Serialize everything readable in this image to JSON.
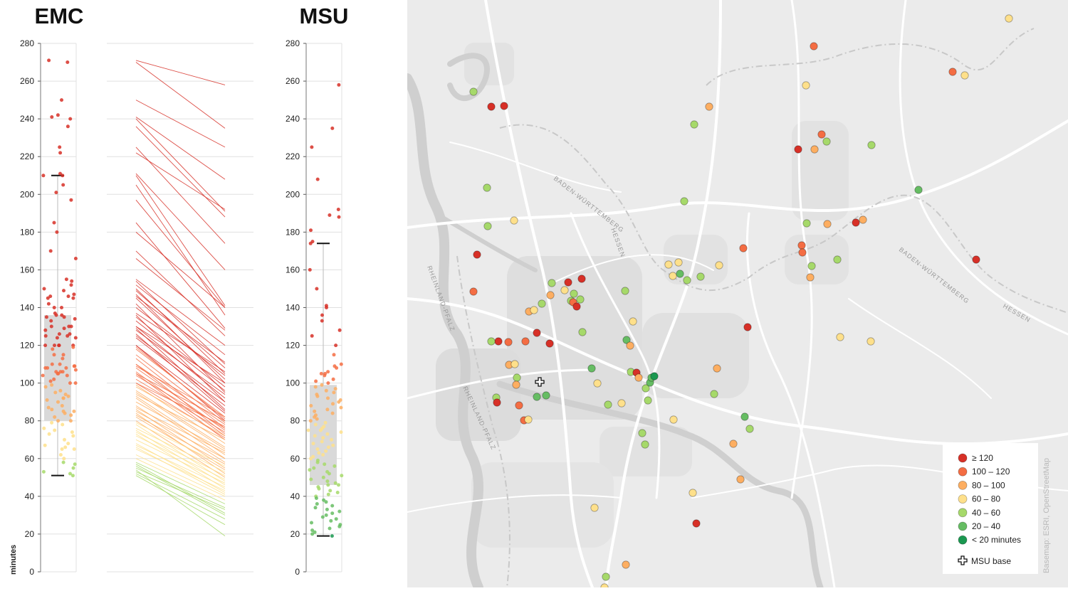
{
  "colors": {
    "ge120": "#d73027",
    "c100_120": "#f46d43",
    "c80_100": "#fdae61",
    "c60_80": "#fee08b",
    "c40_60": "#a6d96a",
    "c20_40": "#66bd63",
    "lt20": "#1a9850",
    "box": "#d9d9d9",
    "grid": "#e0e0e0"
  },
  "chart_data": [
    {
      "type": "box",
      "title": "EMC",
      "ylabel": "minutes",
      "ylim": [
        0,
        280
      ],
      "yticks": [
        0,
        20,
        40,
        60,
        80,
        100,
        120,
        140,
        160,
        180,
        200,
        220,
        240,
        260,
        280
      ],
      "box": {
        "q1": 80,
        "median": 105,
        "q3": 136,
        "whisker_low": 51,
        "whisker_high": 210
      },
      "points": [
        271,
        270,
        250,
        242,
        241,
        240,
        236,
        225,
        222,
        211,
        210,
        210,
        205,
        201,
        197,
        185,
        180,
        170,
        166,
        155,
        154,
        152,
        150,
        149,
        147,
        146,
        146,
        145,
        145,
        142,
        140,
        140,
        137,
        136,
        136,
        135,
        135,
        134,
        133,
        130,
        130,
        130,
        129,
        128,
        126,
        126,
        125,
        125,
        124,
        124,
        120,
        120,
        120,
        120,
        120,
        119,
        118,
        115,
        115,
        113,
        110,
        110,
        109,
        109,
        108,
        108,
        108,
        107,
        106,
        106,
        106,
        105,
        105,
        104,
        104,
        102,
        101,
        100,
        100,
        99,
        98,
        96,
        95,
        94,
        93,
        92,
        92,
        91,
        90,
        88,
        87,
        86,
        85,
        85,
        84,
        83,
        82,
        80,
        80,
        79,
        78,
        76,
        75,
        74,
        73,
        72,
        70,
        68,
        67,
        66,
        65,
        65,
        62,
        60,
        58,
        57,
        55,
        53,
        52,
        51
      ]
    },
    {
      "type": "slope",
      "ylim": [
        0,
        280
      ],
      "pairs": [
        [
          271,
          258
        ],
        [
          270,
          235
        ],
        [
          250,
          225
        ],
        [
          241,
          208
        ],
        [
          240,
          191
        ],
        [
          236,
          188
        ],
        [
          225,
          174
        ],
        [
          222,
          192
        ],
        [
          211,
          160
        ],
        [
          210,
          141
        ],
        [
          205,
          136
        ],
        [
          197,
          140
        ],
        [
          185,
          129
        ],
        [
          180,
          140
        ],
        [
          170,
          125
        ],
        [
          166,
          128
        ],
        [
          155,
          120
        ],
        [
          154,
          110
        ],
        [
          152,
          115
        ],
        [
          150,
          105
        ],
        [
          149,
          108
        ],
        [
          147,
          100
        ],
        [
          146,
          111
        ],
        [
          145,
          102
        ],
        [
          142,
          95
        ],
        [
          140,
          104
        ],
        [
          137,
          106
        ],
        [
          136,
          90
        ],
        [
          135,
          98
        ],
        [
          133,
          96
        ],
        [
          130,
          92
        ],
        [
          130,
          100
        ],
        [
          129,
          86
        ],
        [
          128,
          94
        ],
        [
          126,
          85
        ],
        [
          125,
          90
        ],
        [
          124,
          88
        ],
        [
          120,
          84
        ],
        [
          120,
          80
        ],
        [
          119,
          81
        ],
        [
          118,
          82
        ],
        [
          115,
          79
        ],
        [
          113,
          76
        ],
        [
          110,
          78
        ],
        [
          110,
          73
        ],
        [
          109,
          82
        ],
        [
          108,
          75
        ],
        [
          106,
          72
        ],
        [
          105,
          80
        ],
        [
          105,
          70
        ],
        [
          104,
          76
        ],
        [
          102,
          74
        ],
        [
          100,
          77
        ],
        [
          100,
          71
        ],
        [
          99,
          68
        ],
        [
          98,
          72
        ],
        [
          96,
          66
        ],
        [
          95,
          65
        ],
        [
          94,
          70
        ],
        [
          93,
          62
        ],
        [
          92,
          60
        ],
        [
          90,
          64
        ],
        [
          88,
          58
        ],
        [
          87,
          63
        ],
        [
          86,
          55
        ],
        [
          85,
          60
        ],
        [
          84,
          52
        ],
        [
          83,
          57
        ],
        [
          82,
          54
        ],
        [
          80,
          50
        ],
        [
          79,
          56
        ],
        [
          78,
          48
        ],
        [
          76,
          53
        ],
        [
          75,
          46
        ],
        [
          74,
          51
        ],
        [
          73,
          44
        ],
        [
          72,
          49
        ],
        [
          70,
          47
        ],
        [
          68,
          42
        ],
        [
          67,
          45
        ],
        [
          66,
          41
        ],
        [
          65,
          43
        ],
        [
          62,
          40
        ],
        [
          60,
          38
        ],
        [
          58,
          36
        ],
        [
          57,
          31
        ],
        [
          55,
          34
        ],
        [
          53,
          33
        ],
        [
          52,
          28
        ],
        [
          51,
          25
        ],
        [
          54,
          19
        ],
        [
          56,
          30
        ]
      ]
    },
    {
      "type": "box",
      "title": "MSU",
      "ylabel": "",
      "ylim": [
        0,
        280
      ],
      "yticks": [
        0,
        20,
        40,
        60,
        80,
        100,
        120,
        140,
        160,
        180,
        200,
        220,
        240,
        260,
        280
      ],
      "box": {
        "q1": 46,
        "median": 75,
        "q3": 99,
        "whisker_low": 19,
        "whisker_high": 174
      },
      "points": [
        258,
        235,
        225,
        208,
        192,
        189,
        188,
        181,
        175,
        174,
        160,
        150,
        141,
        140,
        136,
        133,
        128,
        125,
        120,
        115,
        110,
        109,
        108,
        106,
        105,
        105,
        104,
        102,
        101,
        100,
        99,
        98,
        97,
        96,
        95,
        94,
        93,
        92,
        91,
        90,
        89,
        88,
        87,
        86,
        85,
        84,
        83,
        82,
        81,
        80,
        79,
        78,
        77,
        76,
        75,
        75,
        74,
        73,
        72,
        71,
        70,
        69,
        68,
        67,
        66,
        65,
        64,
        63,
        62,
        61,
        60,
        59,
        58,
        57,
        56,
        55,
        54,
        53,
        52,
        51,
        50,
        49,
        48,
        47,
        46,
        46,
        45,
        44,
        43,
        42,
        41,
        40,
        39,
        38,
        37,
        36,
        35,
        34,
        33,
        32,
        31,
        30,
        29,
        28,
        27,
        26,
        25,
        24,
        23,
        22,
        21,
        20,
        19
      ]
    }
  ],
  "map": {
    "region_labels": [
      "BADEN-WÜRTTEMBERG",
      "HESSEN",
      "RHEINLAND-PFALZ",
      "RHEINLAND-PFALZ",
      "BADEN-WÜRTTEMBERG",
      "HESSEN"
    ],
    "base_icon": "msu-base-plus-icon",
    "incidents": [
      {
        "minutes": 130,
        "cls": "ge120"
      },
      {
        "minutes": 128,
        "cls": "ge120"
      },
      {
        "minutes": 45,
        "cls": "c40_60"
      },
      {
        "minutes": 112,
        "cls": "c100_120"
      },
      {
        "minutes": 90,
        "cls": "c80_100"
      },
      {
        "minutes": 125,
        "cls": "ge120"
      },
      {
        "minutes": 50,
        "cls": "c40_60"
      },
      {
        "minutes": 55,
        "cls": "c40_60"
      },
      {
        "minutes": 65,
        "cls": "c60_80"
      },
      {
        "minutes": 125,
        "cls": "ge120"
      },
      {
        "minutes": 108,
        "cls": "c100_120"
      },
      {
        "minutes": 122,
        "cls": "ge120"
      },
      {
        "minutes": 85,
        "cls": "c80_100"
      },
      {
        "minutes": 70,
        "cls": "c60_80"
      },
      {
        "minutes": 48,
        "cls": "c40_60"
      },
      {
        "minutes": 123,
        "cls": "ge120"
      },
      {
        "minutes": 42,
        "cls": "c40_60"
      },
      {
        "minutes": 122,
        "cls": "ge120"
      },
      {
        "minutes": 47,
        "cls": "c40_60"
      },
      {
        "minutes": 102,
        "cls": "c100_120"
      },
      {
        "minutes": 60,
        "cls": "c60_80"
      },
      {
        "minutes": 45,
        "cls": "c40_60"
      },
      {
        "minutes": 90,
        "cls": "c80_100"
      },
      {
        "minutes": 48,
        "cls": "c40_60"
      },
      {
        "minutes": 120,
        "cls": "ge120"
      },
      {
        "minutes": 50,
        "cls": "c40_60"
      },
      {
        "minutes": 121,
        "cls": "ge120"
      },
      {
        "minutes": 113,
        "cls": "c100_120"
      },
      {
        "minutes": 110,
        "cls": "c100_120"
      },
      {
        "minutes": 90,
        "cls": "c80_100"
      },
      {
        "minutes": 70,
        "cls": "c60_80"
      },
      {
        "minutes": 125,
        "cls": "ge120"
      },
      {
        "minutes": 47,
        "cls": "c40_60"
      },
      {
        "minutes": 44,
        "cls": "c40_60"
      },
      {
        "minutes": 35,
        "cls": "c20_40"
      },
      {
        "minutes": 36,
        "cls": "c20_40"
      },
      {
        "minutes": 50,
        "cls": "c40_60"
      },
      {
        "minutes": 123,
        "cls": "ge120"
      },
      {
        "minutes": 88,
        "cls": "c80_100"
      },
      {
        "minutes": 112,
        "cls": "c100_120"
      },
      {
        "minutes": 105,
        "cls": "c100_120"
      },
      {
        "minutes": 72,
        "cls": "c60_80"
      },
      {
        "minutes": 65,
        "cls": "c60_80"
      },
      {
        "minutes": 46,
        "cls": "c40_60"
      },
      {
        "minutes": 44,
        "cls": "c40_60"
      },
      {
        "minutes": 126,
        "cls": "ge120"
      },
      {
        "minutes": 95,
        "cls": "c80_100"
      },
      {
        "minutes": 38,
        "cls": "c20_40"
      },
      {
        "minutes": 66,
        "cls": "c60_80"
      },
      {
        "minutes": 42,
        "cls": "c40_60"
      },
      {
        "minutes": 33,
        "cls": "c20_40"
      },
      {
        "minutes": 85,
        "cls": "c80_100"
      },
      {
        "minutes": 63,
        "cls": "c60_80"
      },
      {
        "minutes": 45,
        "cls": "c40_60"
      },
      {
        "minutes": 44,
        "cls": "c40_60"
      },
      {
        "minutes": 28,
        "cls": "c20_40"
      },
      {
        "minutes": 30,
        "cls": "c20_40"
      },
      {
        "minutes": 18,
        "cls": "lt20"
      },
      {
        "minutes": 42,
        "cls": "c40_60"
      },
      {
        "minutes": 44,
        "cls": "c40_60"
      },
      {
        "minutes": 82,
        "cls": "c80_100"
      },
      {
        "minutes": 86,
        "cls": "c80_100"
      },
      {
        "minutes": 64,
        "cls": "c60_80"
      },
      {
        "minutes": 62,
        "cls": "c60_80"
      },
      {
        "minutes": 61,
        "cls": "c60_80"
      },
      {
        "minutes": 120,
        "cls": "ge120"
      },
      {
        "minutes": 84,
        "cls": "c80_100"
      },
      {
        "minutes": 68,
        "cls": "c60_80"
      },
      {
        "minutes": 42,
        "cls": "c40_60"
      },
      {
        "minutes": 43,
        "cls": "c40_60"
      },
      {
        "minutes": 62,
        "cls": "c60_80"
      },
      {
        "minutes": 72,
        "cls": "c60_80"
      },
      {
        "minutes": 66,
        "cls": "c60_80"
      },
      {
        "minutes": 42,
        "cls": "c40_60"
      },
      {
        "minutes": 30,
        "cls": "c20_40"
      },
      {
        "minutes": 45,
        "cls": "c40_60"
      },
      {
        "minutes": 60,
        "cls": "c60_80"
      },
      {
        "minutes": 48,
        "cls": "c40_60"
      },
      {
        "minutes": 108,
        "cls": "c100_120"
      },
      {
        "minutes": 125,
        "cls": "ge120"
      },
      {
        "minutes": 88,
        "cls": "c80_100"
      },
      {
        "minutes": 42,
        "cls": "c40_60"
      },
      {
        "minutes": 33,
        "cls": "c20_40"
      },
      {
        "minutes": 40,
        "cls": "c40_60"
      },
      {
        "minutes": 66,
        "cls": "c60_80"
      },
      {
        "minutes": 110,
        "cls": "c100_120"
      },
      {
        "minutes": 95,
        "cls": "c80_100"
      },
      {
        "minutes": 44,
        "cls": "c40_60"
      },
      {
        "minutes": 46,
        "cls": "c40_60"
      },
      {
        "minutes": 88,
        "cls": "c80_100"
      },
      {
        "minutes": 90,
        "cls": "c80_100"
      },
      {
        "minutes": 125,
        "cls": "ge120"
      },
      {
        "minutes": 105,
        "cls": "c100_120"
      },
      {
        "minutes": 110,
        "cls": "c100_120"
      },
      {
        "minutes": 45,
        "cls": "c40_60"
      },
      {
        "minutes": 85,
        "cls": "c80_100"
      },
      {
        "minutes": 45,
        "cls": "c40_60"
      },
      {
        "minutes": 62,
        "cls": "c60_80"
      },
      {
        "minutes": 124,
        "cls": "ge120"
      },
      {
        "minutes": 102,
        "cls": "c100_120"
      },
      {
        "minutes": 62,
        "cls": "c60_80"
      },
      {
        "minutes": 64,
        "cls": "c60_80"
      },
      {
        "minutes": 32,
        "cls": "c20_40"
      },
      {
        "minutes": 45,
        "cls": "c40_60"
      },
      {
        "minutes": 66,
        "cls": "c60_80"
      }
    ]
  },
  "legend": {
    "items": [
      {
        "label": "≥ 120",
        "cls": "ge120"
      },
      {
        "label": "100 – 120",
        "cls": "c100_120"
      },
      {
        "label": "80 – 100",
        "cls": "c80_100"
      },
      {
        "label": "60 – 80",
        "cls": "c60_80"
      },
      {
        "label": "40 – 60",
        "cls": "c40_60"
      },
      {
        "label": "20 – 40",
        "cls": "c20_40"
      },
      {
        "label": "< 20 minutes",
        "cls": "lt20"
      }
    ],
    "base_label": "MSU base"
  },
  "attribution": "Basemap: ESRI, OpenStreetMap"
}
